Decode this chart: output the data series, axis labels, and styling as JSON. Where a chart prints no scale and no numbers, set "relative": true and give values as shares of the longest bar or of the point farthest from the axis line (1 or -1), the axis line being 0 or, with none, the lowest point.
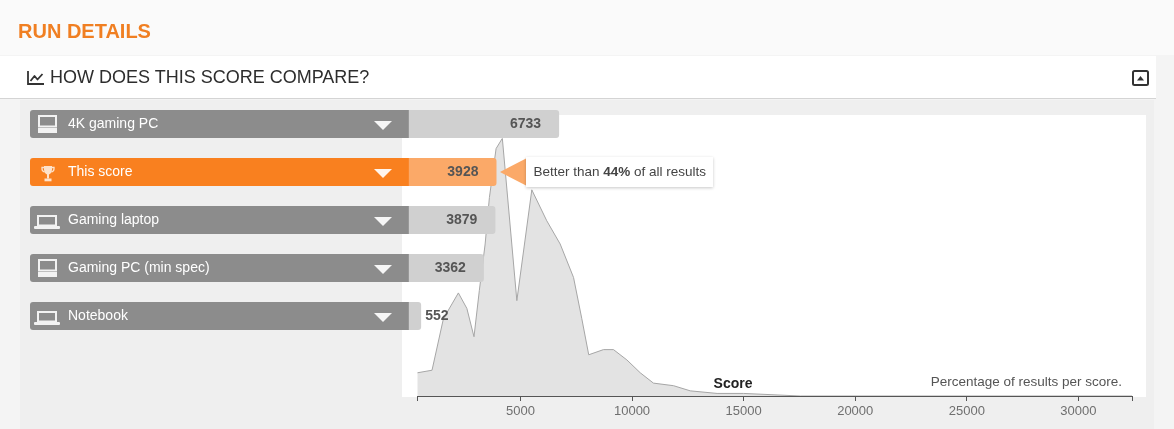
{
  "chart_data": [
    {
      "type": "bar",
      "title": "RUN DETAILS",
      "subtitle": "HOW DOES THIS SCORE COMPARE?",
      "orientation": "horizontal",
      "categories": [
        "4K gaming PC",
        "This score",
        "Gaming laptop",
        "Gaming PC (min spec)",
        "Notebook"
      ],
      "values": [
        6733,
        3928,
        3879,
        3362,
        552
      ],
      "colors": [
        "#d0d0d0",
        "#fba968",
        "#d0d0d0",
        "#d0d0d0",
        "#d0d0d0"
      ],
      "data_labels": true,
      "tick_labels": "y",
      "annotations": [
        {
          "text": "Better than 44% of all results",
          "x": 3928,
          "y": "This score"
        }
      ]
    },
    {
      "type": "area",
      "xlabel": "Score",
      "x": [
        380,
        1040,
        1550,
        2220,
        2600,
        2920,
        3160,
        3420,
        3610,
        3910,
        4190,
        4840,
        5510,
        6180,
        6780,
        7380,
        7750,
        8060,
        8720,
        9170,
        9770,
        10370,
        10960,
        11860,
        12610,
        13810,
        15000,
        17540,
        32400
      ],
      "values": [
        0.09,
        0.1,
        0.3,
        0.4,
        0.34,
        0.23,
        0.41,
        0.59,
        0.77,
        0.96,
        1,
        0.37,
        0.8,
        0.68,
        0.59,
        0.46,
        0.3,
        0.16,
        0.18,
        0.18,
        0.14,
        0.09,
        0.05,
        0.04,
        0.02,
        0.01,
        0.01,
        0,
        0
      ],
      "color": "#e3e3e3",
      "relative": true,
      "xlim": [
        380,
        32400
      ],
      "xticks": [
        {
          "value": 380,
          "label": null
        },
        5000,
        10000,
        15000,
        20000,
        25000,
        30000,
        {
          "value": 32400,
          "label": null
        }
      ],
      "annotations": [
        "Percentage of results per score."
      ]
    }
  ]
}
